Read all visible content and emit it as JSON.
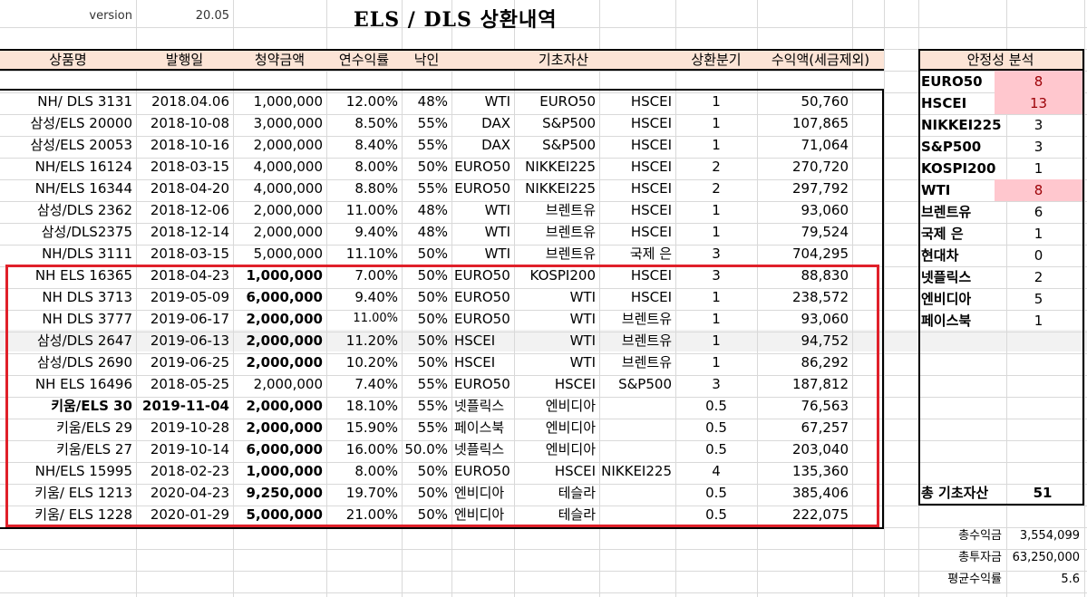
{
  "header": {
    "version_label": "version",
    "version_value": "20.05",
    "title": "ELS / DLS 상환내역"
  },
  "columns": [
    "상품명",
    "발행일",
    "청약금액",
    "연수익률",
    "낙인",
    "기초자산",
    "상환분기",
    "수익액(세금제외)"
  ],
  "rows": [
    {
      "name": "NH/ DLS 3131",
      "date": "2018.04.06",
      "amount": "1,000,000",
      "rate": "12.00%",
      "knockin": "48%",
      "a1": "WTI",
      "a2": "EURO50",
      "a3": "HSCEI",
      "q": "1",
      "profit": "50,760"
    },
    {
      "name": "삼성/ELS 20000",
      "date": "2018-10-08",
      "amount": "3,000,000",
      "rate": "8.50%",
      "knockin": "55%",
      "a1": "DAX",
      "a2": "S&P500",
      "a3": "HSCEI",
      "q": "1",
      "profit": "107,865"
    },
    {
      "name": "삼성/ELS 20053",
      "date": "2018-10-16",
      "amount": "2,000,000",
      "rate": "8.40%",
      "knockin": "55%",
      "a1": "DAX",
      "a2": "S&P500",
      "a3": "HSCEI",
      "q": "1",
      "profit": "71,064"
    },
    {
      "name": "NH/ELS 16124",
      "date": "2018-03-15",
      "amount": "4,000,000",
      "rate": "8.00%",
      "knockin": "50%",
      "a1": "EURO50",
      "a2": "NIKKEI225",
      "a3": "HSCEI",
      "q": "2",
      "profit": "270,720"
    },
    {
      "name": "NH/ELS 16344",
      "date": "2018-04-20",
      "amount": "4,000,000",
      "rate": "8.80%",
      "knockin": "55%",
      "a1": "EURO50",
      "a2": "NIKKEI225",
      "a3": "HSCEI",
      "q": "2",
      "profit": "297,792"
    },
    {
      "name": "삼성/DLS 2362",
      "date": "2018-12-06",
      "amount": "2,000,000",
      "rate": "11.00%",
      "knockin": "48%",
      "a1": "WTI",
      "a2": "브렌트유",
      "a3": "HSCEI",
      "q": "1",
      "profit": "93,060"
    },
    {
      "name": "삼성/DLS2375",
      "date": "2018-12-14",
      "amount": "2,000,000",
      "rate": "9.40%",
      "knockin": "48%",
      "a1": "WTI",
      "a2": "브렌트유",
      "a3": "HSCEI",
      "q": "1",
      "profit": "79,524"
    },
    {
      "name": "NH/DLS 3111",
      "date": "2018-03-15",
      "amount": "5,000,000",
      "rate": "11.10%",
      "knockin": "50%",
      "a1": "WTI",
      "a2": "브렌트유",
      "a3": "국제 은",
      "q": "3",
      "profit": "704,295"
    },
    {
      "name": "NH ELS 16365",
      "date": "2018-04-23",
      "amount": "1,000,000",
      "rate": "7.00%",
      "knockin": "50%",
      "a1": "EURO50",
      "a2": "KOSPI200",
      "a3": "HSCEI",
      "q": "3",
      "profit": "88,830"
    },
    {
      "name": "NH DLS 3713",
      "date": "2019-05-09",
      "amount": "6,000,000",
      "rate": "9.40%",
      "knockin": "50%",
      "a1": "EURO50",
      "a2": "WTI",
      "a3": "HSCEI",
      "q": "1",
      "profit": "238,572"
    },
    {
      "name": "NH DLS 3777",
      "date": "2019-06-17",
      "amount": "2,000,000",
      "rate": "11.00%",
      "knockin": "50%",
      "a1": "EURO50",
      "a2": "WTI",
      "a3": "브렌트유",
      "q": "1",
      "profit": "93,060"
    },
    {
      "name": "삼성/DLS 2647",
      "date": "2019-06-13",
      "amount": "2,000,000",
      "rate": "11.20%",
      "knockin": "50%",
      "a1": "HSCEI",
      "a2": "WTI",
      "a3": "브렌트유",
      "q": "1",
      "profit": "94,752"
    },
    {
      "name": "삼성/DLS 2690",
      "date": "2019-06-25",
      "amount": "2,000,000",
      "rate": "10.20%",
      "knockin": "50%",
      "a1": "HSCEI",
      "a2": "WTI",
      "a3": "브렌트유",
      "q": "1",
      "profit": "86,292"
    },
    {
      "name": "NH ELS 16496",
      "date": "2018-05-25",
      "amount": "2,000,000",
      "rate": "7.40%",
      "knockin": "55%",
      "a1": "EURO50",
      "a2": "HSCEI",
      "a3": "S&P500",
      "q": "3",
      "profit": "187,812"
    },
    {
      "name": "키움/ELS 30",
      "date": "2019-11-04",
      "amount": "2,000,000",
      "rate": "18.10%",
      "knockin": "55%",
      "a1": "넷플릭스",
      "a2": "엔비디아",
      "a3": "",
      "q": "0.5",
      "profit": "76,563"
    },
    {
      "name": "키움/ELS 29",
      "date": "2019-10-28",
      "amount": "2,000,000",
      "rate": "15.90%",
      "knockin": "55%",
      "a1": "페이스북",
      "a2": "엔비디아",
      "a3": "",
      "q": "0.5",
      "profit": "67,257"
    },
    {
      "name": "키움/ELS 27",
      "date": "2019-10-14",
      "amount": "6,000,000",
      "rate": "16.00%",
      "knockin": "50.0%",
      "a1": "넷플릭스",
      "a2": "엔비디아",
      "a3": "",
      "q": "0.5",
      "profit": "203,040"
    },
    {
      "name": "NH/ELS 15995",
      "date": "2018-02-23",
      "amount": "1,000,000",
      "rate": "8.00%",
      "knockin": "50%",
      "a1": "EURO50",
      "a2": "HSCEI",
      "a3": "NIKKEI225",
      "q": "4",
      "profit": "135,360"
    },
    {
      "name": "키움/ ELS 1213",
      "date": "2020-04-23",
      "amount": "9,250,000",
      "rate": "19.70%",
      "knockin": "50%",
      "a1": "엔비디아",
      "a2": "테슬라",
      "a3": "",
      "q": "0.5",
      "profit": "385,406"
    },
    {
      "name": "키움/ ELS 1228",
      "date": "2020-01-29",
      "amount": "5,000,000",
      "rate": "21.00%",
      "knockin": "50%",
      "a1": "엔비디아",
      "a2": "테슬라",
      "a3": "",
      "q": "0.5",
      "profit": "222,075"
    }
  ],
  "stability": {
    "title": "안정성 분석",
    "items": [
      {
        "label": "EURO50",
        "value": "8"
      },
      {
        "label": "HSCEI",
        "value": "13"
      },
      {
        "label": "NIKKEI225",
        "value": "3"
      },
      {
        "label": "S&P500",
        "value": "3"
      },
      {
        "label": "KOSPI200",
        "value": "1"
      },
      {
        "label": "WTI",
        "value": "8"
      },
      {
        "label": "브렌트유",
        "value": "6"
      },
      {
        "label": "국제 은",
        "value": "1"
      },
      {
        "label": "현대차",
        "value": "0"
      },
      {
        "label": "넷플릭스",
        "value": "2"
      },
      {
        "label": "엔비디아",
        "value": "5"
      },
      {
        "label": "페이스북",
        "value": "1"
      }
    ],
    "total_label": "총 기초자산",
    "total_value": "51"
  },
  "summary": {
    "profit_label": "총수익금",
    "profit_value": "3,554,099",
    "invest_label": "총투자금",
    "invest_value": "63,250,000",
    "avg_label": "평균수익률",
    "avg_value": "5.6"
  },
  "colors": {
    "header_bg": "#fce4d6",
    "pink": "#ffc7ce",
    "red_box": "#e0202a",
    "grid": "#d9d9d9"
  }
}
